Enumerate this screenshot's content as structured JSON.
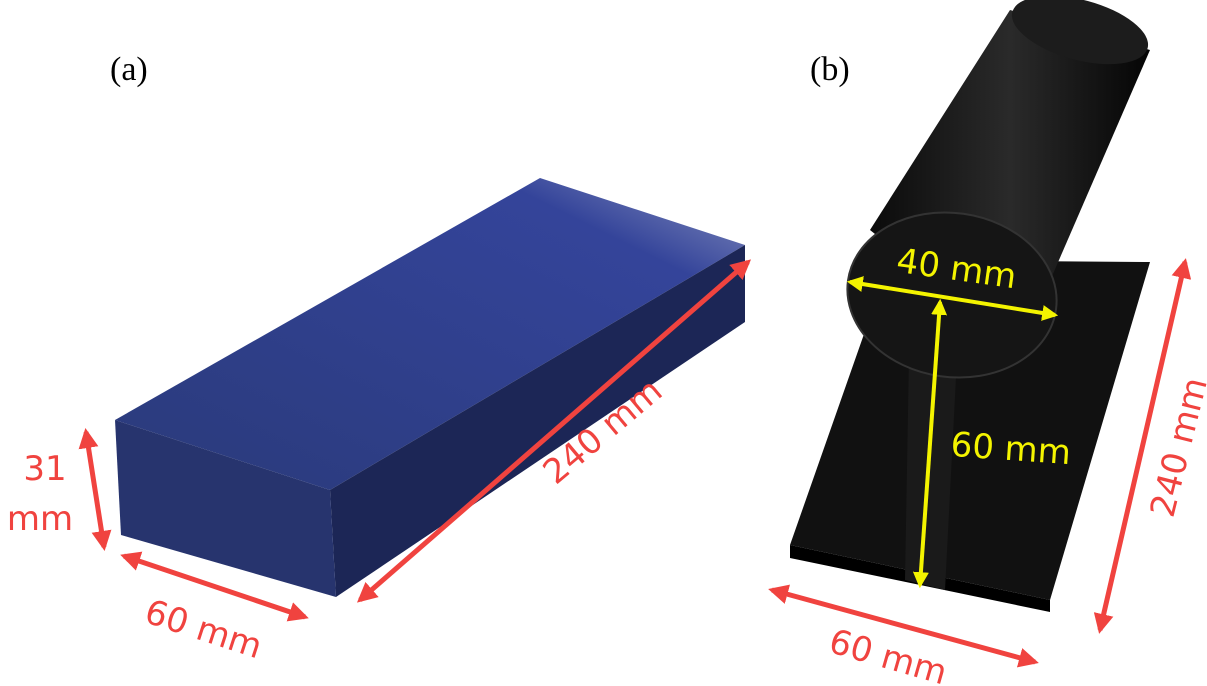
{
  "panels": [
    {
      "label": "(a)",
      "height": [
        "31",
        "mm"
      ],
      "width": "60 mm",
      "length": "240 mm"
    },
    {
      "label": "(b)",
      "diameter": "40 mm",
      "height": "60 mm",
      "width": "60 mm",
      "length": "240 mm"
    }
  ]
}
